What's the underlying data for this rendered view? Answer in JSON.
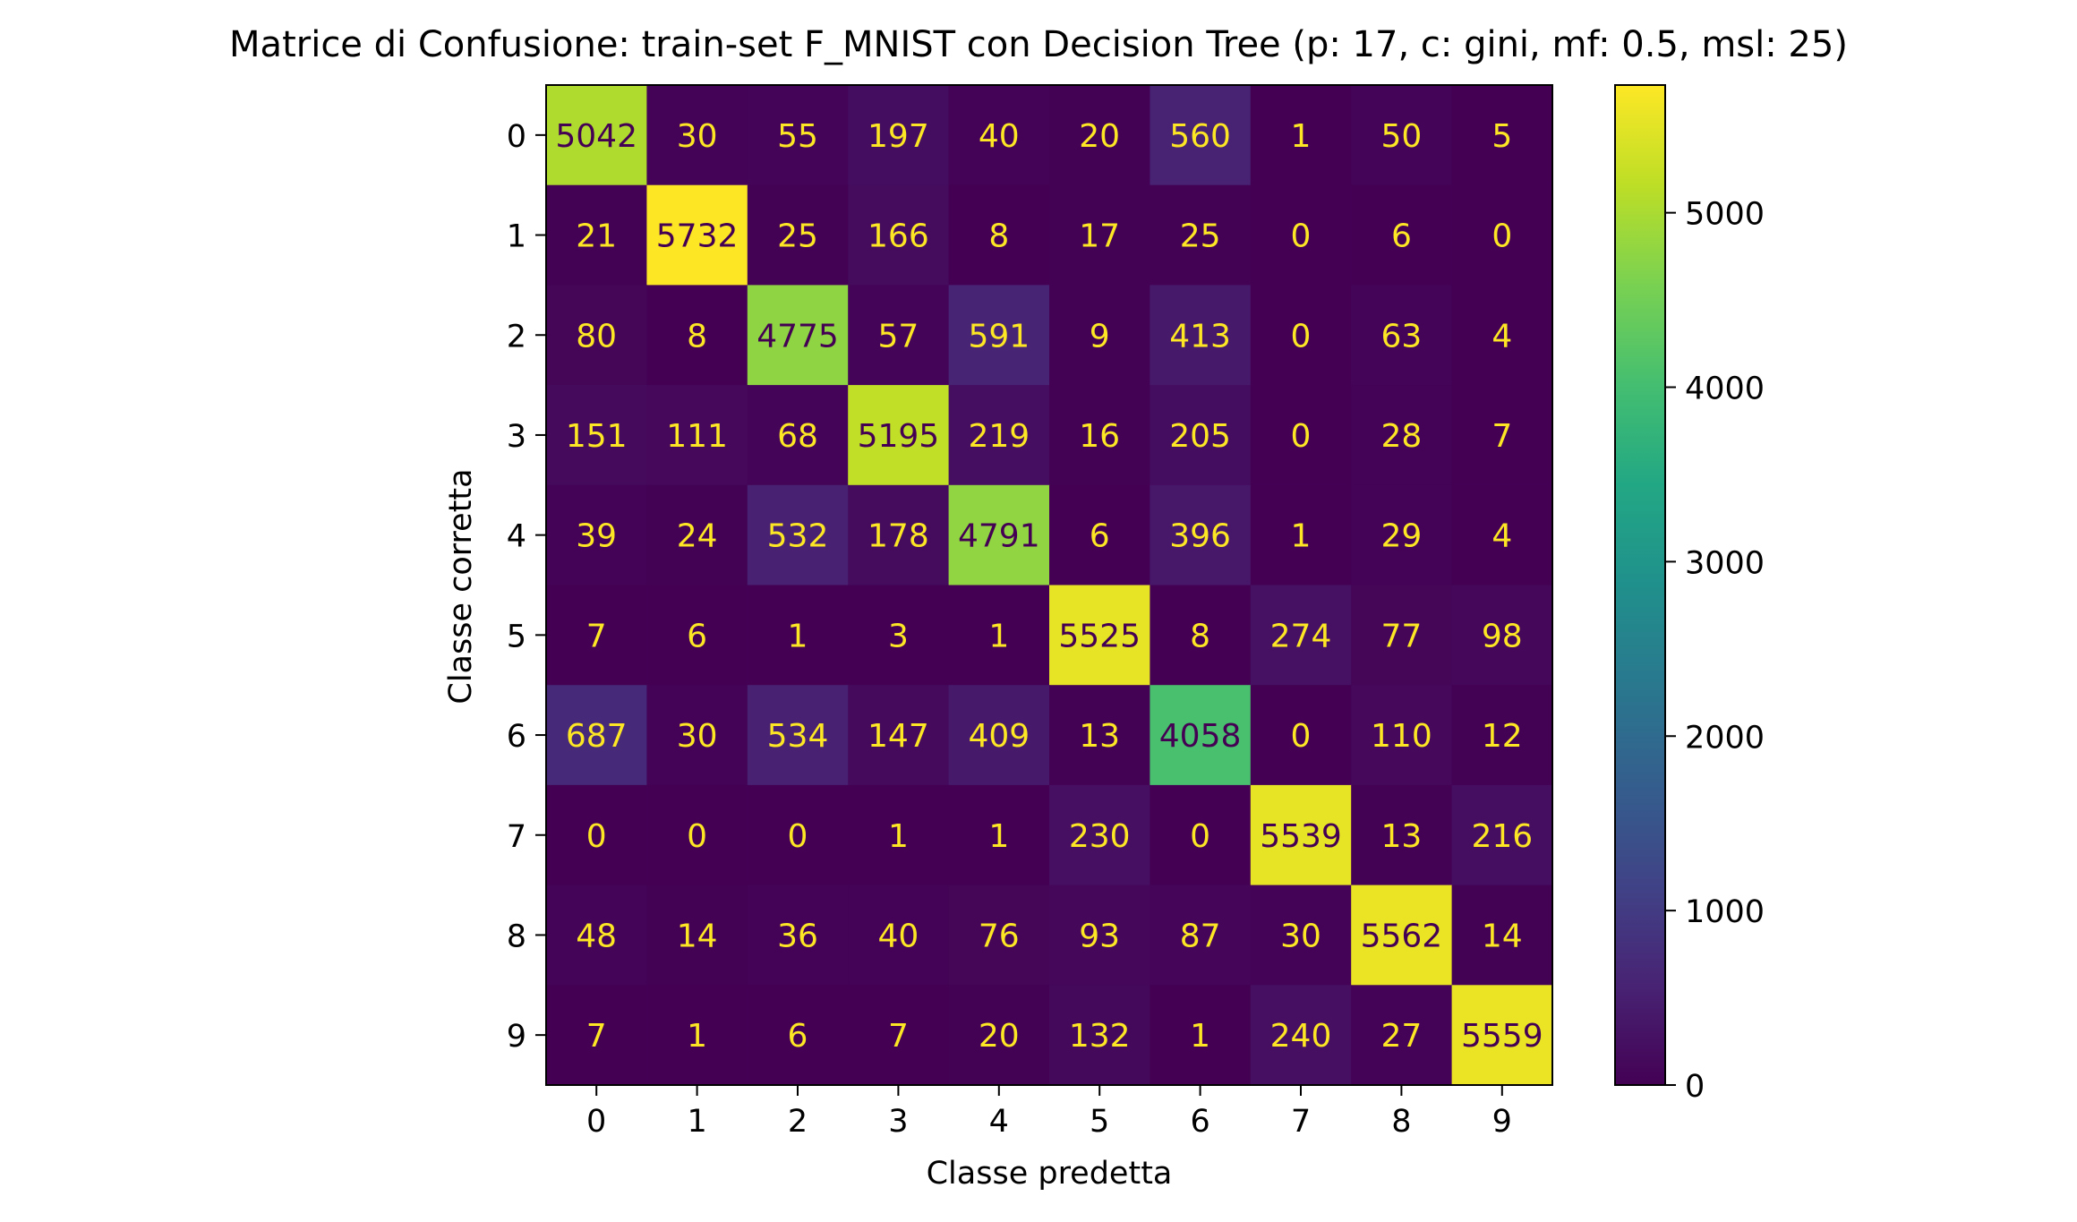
{
  "chart_data": {
    "type": "heatmap",
    "title": "Matrice di Confusione: train-set F_MNIST con Decision Tree (p: 17, c: gini, mf: 0.5, msl: 25)",
    "xlabel": "Classe predetta",
    "ylabel": "Classe corretta",
    "x_categories": [
      "0",
      "1",
      "2",
      "3",
      "4",
      "5",
      "6",
      "7",
      "8",
      "9"
    ],
    "y_categories": [
      "0",
      "1",
      "2",
      "3",
      "4",
      "5",
      "6",
      "7",
      "8",
      "9"
    ],
    "values": [
      [
        5042,
        30,
        55,
        197,
        40,
        20,
        560,
        1,
        50,
        5
      ],
      [
        21,
        5732,
        25,
        166,
        8,
        17,
        25,
        0,
        6,
        0
      ],
      [
        80,
        8,
        4775,
        57,
        591,
        9,
        413,
        0,
        63,
        4
      ],
      [
        151,
        111,
        68,
        5195,
        219,
        16,
        205,
        0,
        28,
        7
      ],
      [
        39,
        24,
        532,
        178,
        4791,
        6,
        396,
        1,
        29,
        4
      ],
      [
        7,
        6,
        1,
        3,
        1,
        5525,
        8,
        274,
        77,
        98
      ],
      [
        687,
        30,
        534,
        147,
        409,
        13,
        4058,
        0,
        110,
        12
      ],
      [
        0,
        0,
        0,
        1,
        1,
        230,
        0,
        5539,
        13,
        216
      ],
      [
        48,
        14,
        36,
        40,
        76,
        93,
        87,
        30,
        5562,
        14
      ],
      [
        7,
        1,
        6,
        7,
        20,
        132,
        1,
        240,
        27,
        5559
      ]
    ],
    "colormap": "viridis",
    "colorbar": {
      "range": [
        0,
        5732
      ],
      "ticks": [
        0,
        1000,
        2000,
        3000,
        4000,
        5000
      ]
    },
    "text_colors": {
      "low": "#fde725",
      "high": "#440154"
    },
    "grid": false
  }
}
